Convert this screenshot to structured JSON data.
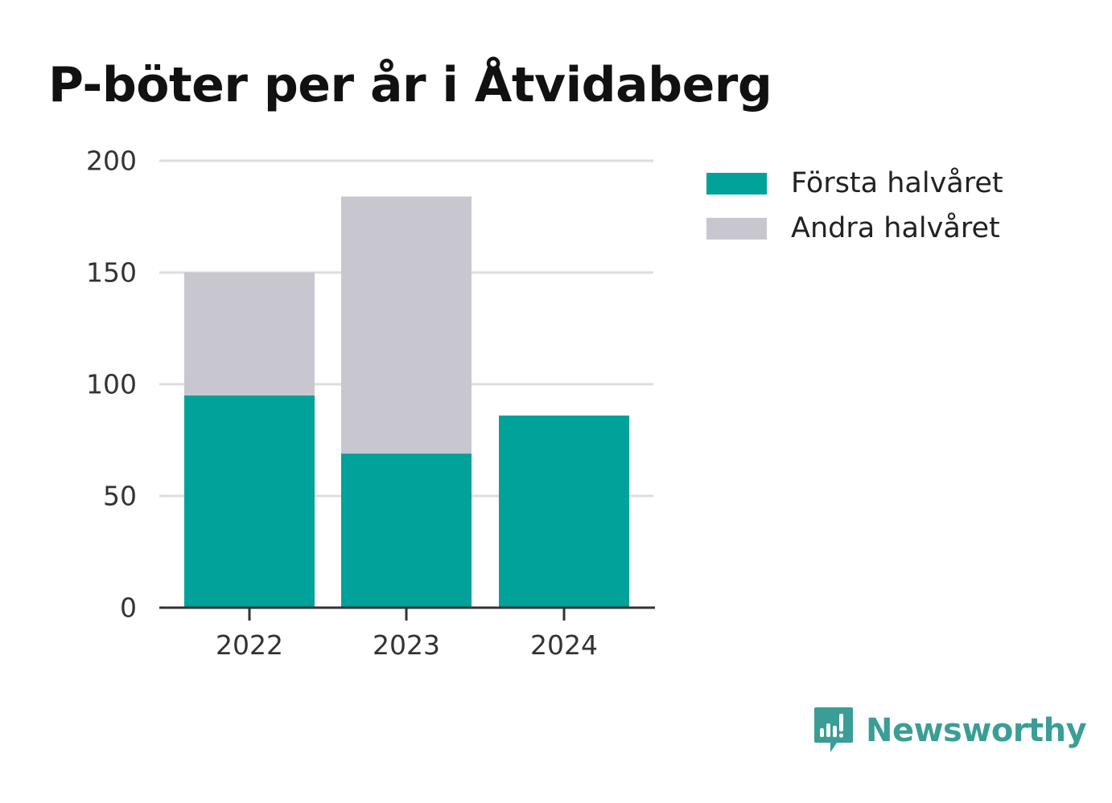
{
  "chart_data": {
    "type": "bar",
    "stacked": true,
    "title": "P-böter per år i Åtvidaberg",
    "xlabel": "",
    "ylabel": "",
    "categories": [
      "2022",
      "2023",
      "2024"
    ],
    "series": [
      {
        "name": "Första halvåret",
        "color": "#00a29a",
        "values": [
          95,
          69,
          86
        ]
      },
      {
        "name": "Andra halvåret",
        "color": "#c8c7d0",
        "values": [
          55,
          115,
          0
        ]
      }
    ],
    "ylim": [
      0,
      200
    ],
    "yticks": [
      "0",
      "50",
      "100",
      "150",
      "200"
    ],
    "grid": true,
    "legend_position": "top-right"
  },
  "brand": {
    "name": "Newsworthy",
    "icon": "newsworthy-logo-icon",
    "color": "#3a9e96"
  }
}
